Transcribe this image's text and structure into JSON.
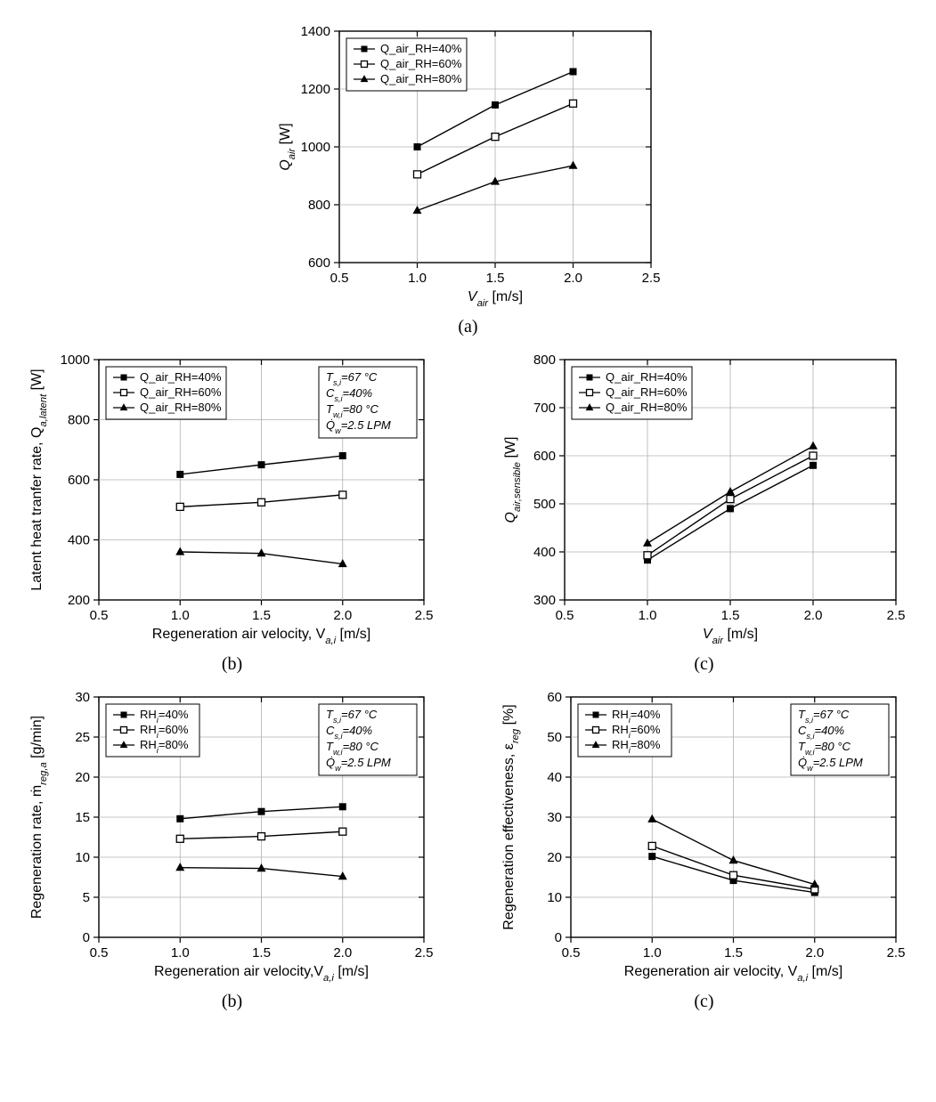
{
  "common": {
    "line_color": "#000000",
    "grid_color": "#b0b0b0",
    "axis_color": "#000000",
    "bg_color": "#ffffff",
    "tick_font_size": 15,
    "axis_label_font_size": 16,
    "legend_font_size": 13,
    "marker_size": 7
  },
  "conditions_box": {
    "lines": [
      "T_{s,i}=67 °C",
      "C_{s,i}=40%",
      "T_{w,i}=80 °C",
      "Q̇_{w}=2.5 LPM"
    ],
    "border_color": "#000000"
  },
  "chart_a": {
    "type": "line",
    "x": [
      1.0,
      1.5,
      2.0
    ],
    "xlim": [
      0.5,
      2.5
    ],
    "xticks": [
      0.5,
      1.0,
      1.5,
      2.0,
      2.5
    ],
    "ylim": [
      600,
      1400
    ],
    "yticks": [
      600,
      800,
      1000,
      1200,
      1400
    ],
    "xlabel_plain": "V",
    "xlabel_sub": "air",
    "xlabel_suffix": " [m/s]",
    "ylabel_plain": "Q",
    "ylabel_sub": "air",
    "ylabel_suffix": " [W]",
    "series": [
      {
        "label": "Q_air_RH=40%",
        "marker": "filled-square",
        "y": [
          1000,
          1145,
          1260
        ]
      },
      {
        "label": "Q_air_RH=60%",
        "marker": "open-square",
        "y": [
          905,
          1035,
          1150
        ]
      },
      {
        "label": "Q_air_RH=80%",
        "marker": "filled-triangle",
        "y": [
          780,
          880,
          935
        ]
      }
    ],
    "legend_pos": "top-left",
    "caption": "(a)"
  },
  "chart_b": {
    "type": "line",
    "x": [
      1.0,
      1.5,
      2.0
    ],
    "xlim": [
      0.5,
      2.5
    ],
    "xticks": [
      0.5,
      1.0,
      1.5,
      2.0,
      2.5
    ],
    "ylim": [
      200,
      1000
    ],
    "yticks": [
      200,
      400,
      600,
      800,
      1000
    ],
    "xlabel_full": "Regeneration air velocity, V_{a,i} [m/s]",
    "ylabel_full": "Latent heat tranfer rate, Q_{a,latent} [W]",
    "series": [
      {
        "label": "Q_air_RH=40%",
        "marker": "filled-square",
        "y": [
          618,
          650,
          680
        ]
      },
      {
        "label": "Q_air_RH=60%",
        "marker": "open-square",
        "y": [
          510,
          525,
          550
        ]
      },
      {
        "label": "Q_air_RH=80%",
        "marker": "filled-triangle",
        "y": [
          360,
          355,
          320
        ]
      }
    ],
    "legend_pos": "top-left",
    "cond_box": true,
    "caption": "(b)"
  },
  "chart_c": {
    "type": "line",
    "x": [
      1.0,
      1.5,
      2.0
    ],
    "xlim": [
      0.5,
      2.5
    ],
    "xticks": [
      0.5,
      1.0,
      1.5,
      2.0,
      2.5
    ],
    "ylim": [
      300,
      800
    ],
    "yticks": [
      300,
      400,
      500,
      600,
      700,
      800
    ],
    "xlabel_plain": "V",
    "xlabel_sub": "air",
    "xlabel_suffix": " [m/s]",
    "ylabel_plain": "Q",
    "ylabel_sub": "air,sensible",
    "ylabel_suffix": " [W]",
    "series": [
      {
        "label": "Q_air_RH=40%",
        "marker": "filled-square",
        "y": [
          383,
          490,
          580
        ]
      },
      {
        "label": "Q_air_RH=60%",
        "marker": "open-square",
        "y": [
          393,
          510,
          600
        ]
      },
      {
        "label": "Q_air_RH=80%",
        "marker": "filled-triangle",
        "y": [
          418,
          525,
          620
        ]
      }
    ],
    "legend_pos": "top-left",
    "caption": "(c)"
  },
  "chart_d": {
    "type": "line",
    "x": [
      1.0,
      1.5,
      2.0
    ],
    "xlim": [
      0.5,
      2.5
    ],
    "xticks": [
      0.5,
      1.0,
      1.5,
      2.0,
      2.5
    ],
    "ylim": [
      0,
      30
    ],
    "yticks": [
      0,
      5,
      10,
      15,
      20,
      25,
      30
    ],
    "xlabel_full": "Regeneration air velocity,V_{a,i} [m/s]",
    "ylabel_full": "Regeneration rate, ṁ_{reg,a} [g/min]",
    "series": [
      {
        "label": "RH_{i}=40%",
        "marker": "filled-square",
        "y": [
          14.8,
          15.7,
          16.3
        ]
      },
      {
        "label": "RH_{i}=60%",
        "marker": "open-square",
        "y": [
          12.3,
          12.6,
          13.2
        ]
      },
      {
        "label": "RH_{i}=80%",
        "marker": "filled-triangle",
        "y": [
          8.7,
          8.6,
          7.6
        ]
      }
    ],
    "legend_pos": "top-left",
    "cond_box": true,
    "caption": "(b)"
  },
  "chart_e": {
    "type": "line",
    "x": [
      1.0,
      1.5,
      2.0
    ],
    "xlim": [
      0.5,
      2.5
    ],
    "xticks": [
      0.5,
      1.0,
      1.5,
      2.0,
      2.5
    ],
    "ylim": [
      0,
      60
    ],
    "yticks": [
      0,
      10,
      20,
      30,
      40,
      50,
      60
    ],
    "xlabel_full": "Regeneration air velocity, V_{a,i} [m/s]",
    "ylabel_full": "Regeneration effectiveness, ε_{reg} [%]",
    "series": [
      {
        "label": "RH_{i}=40%",
        "marker": "filled-square",
        "y": [
          20.2,
          14.2,
          11.2
        ]
      },
      {
        "label": "RH_{i}=60%",
        "marker": "open-square",
        "y": [
          22.8,
          15.5,
          12.0
        ]
      },
      {
        "label": "RH_{i}=80%",
        "marker": "filled-triangle",
        "y": [
          29.5,
          19.2,
          13.2
        ]
      }
    ],
    "legend_pos": "top-left",
    "cond_box": true,
    "caption": "(c)"
  }
}
